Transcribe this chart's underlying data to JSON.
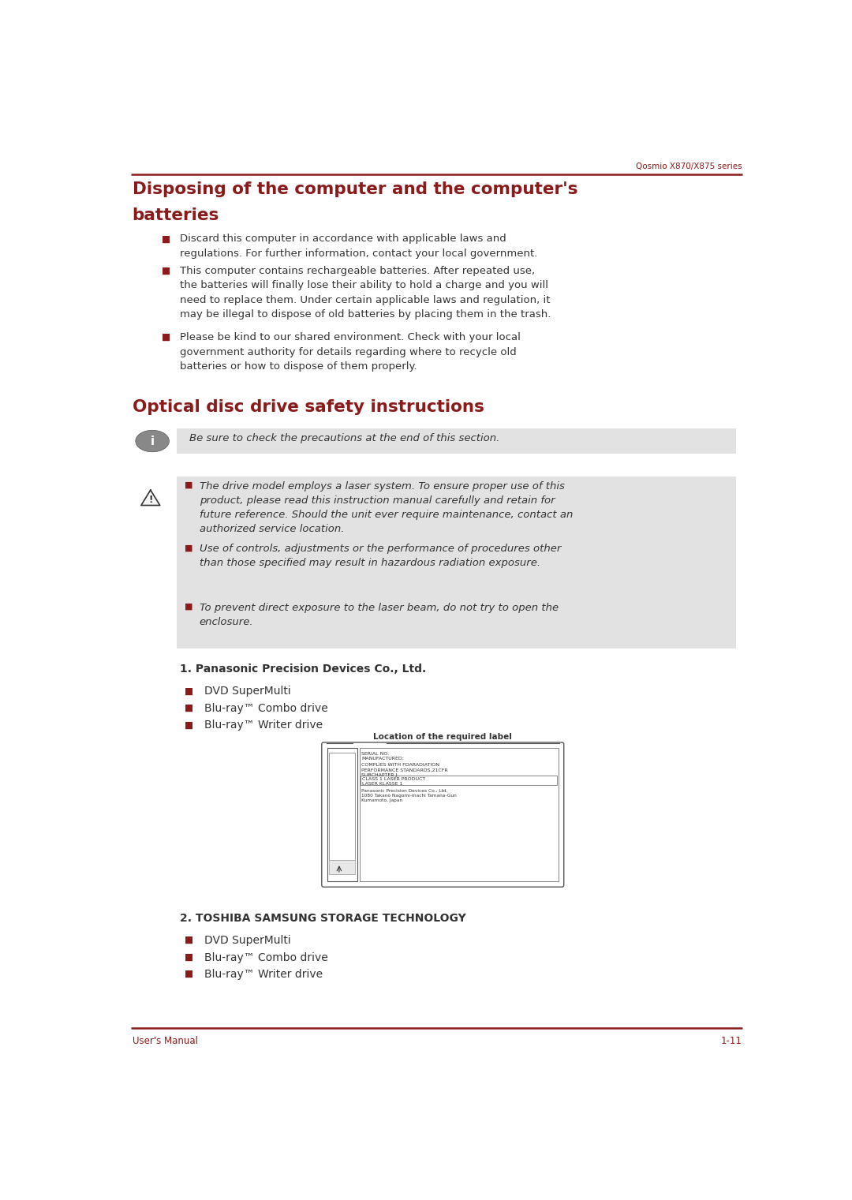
{
  "page_width": 10.8,
  "page_height": 15.21,
  "bg_color": "#ffffff",
  "red_color": "#8B1A1A",
  "body_color": "#333333",
  "gray_bg": "#e2e2e2",
  "footer_left": "User's Manual",
  "footer_right": "1-11",
  "header_text": "Qosmio X870/X875 series",
  "title1_line1": "Disposing of the computer and the computer's",
  "title1_line2": "batteries",
  "title2": "Optical disc drive safety instructions",
  "section1_bullets": [
    "Discard this computer in accordance with applicable laws and\nregulations. For further information, contact your local government.",
    "This computer contains rechargeable batteries. After repeated use,\nthe batteries will finally lose their ability to hold a charge and you will\nneed to replace them. Under certain applicable laws and regulation, it\nmay be illegal to dispose of old batteries by placing them in the trash.",
    "Please be kind to our shared environment. Check with your local\ngovernment authority for details regarding where to recycle old\nbatteries or how to dispose of them properly."
  ],
  "info_text": "Be sure to check the precautions at the end of this section.",
  "warning_bullets": [
    "The drive model employs a laser system. To ensure proper use of this\nproduct, please read this instruction manual carefully and retain for\nfuture reference. Should the unit ever require maintenance, contact an\nauthorized service location.",
    "Use of controls, adjustments or the performance of procedures other\nthan those specified may result in hazardous radiation exposure.",
    "To prevent direct exposure to the laser beam, do not try to open the\nenclosure."
  ],
  "panasonic_title": "1. Panasonic Precision Devices Co., Ltd.",
  "panasonic_bullets": [
    "DVD SuperMulti",
    "Blu-ray™ Combo drive",
    "Blu-ray™ Writer drive"
  ],
  "label_title": "Location of the required label",
  "label_text_block1": "SERIAL NO.\nMANUFACTURED:",
  "label_text_block2": "COMPLIES WITH FDARADIATION\nPERFORMANCE STANDARDS,21CFR\nSUBCHAPTER J.",
  "label_text_block3": "CLASS 1 LASER PRODUCT\nLASER KLASSE 1",
  "label_text_block4": "Panasonic Precision Devices Co., Ltd.\n1080 Takano Nagomi-machi Tamana-Gun\nKumamoto, Japan",
  "toshiba_title": "2. TOSHIBA SAMSUNG STORAGE TECHNOLOGY",
  "toshiba_bullets": [
    "DVD SuperMulti",
    "Blu-ray™ Combo drive",
    "Blu-ray™ Writer drive"
  ]
}
